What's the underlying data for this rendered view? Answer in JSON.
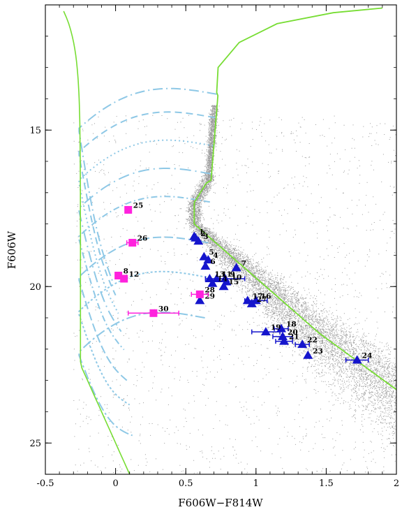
{
  "chart_data": {
    "type": "scatter",
    "title": "",
    "xlabel": "F606W−F814W",
    "ylabel": "F606W",
    "xlim": [
      -0.5,
      2
    ],
    "ylim": [
      26,
      11
    ],
    "x_ticks": [
      -0.5,
      0,
      0.5,
      1,
      1.5,
      2
    ],
    "x_tick_labels": [
      "-0.5",
      "0",
      "0.5",
      "1",
      "1.5",
      "2"
    ],
    "y_ticks": [
      15,
      20,
      25
    ],
    "y_tick_labels": [
      "15",
      "20",
      "25"
    ],
    "grid": false,
    "legend": "none",
    "colors": {
      "field_points": "#8a8a8a",
      "blue_triangles": "#1515cc",
      "magenta_squares": "#ff22dd",
      "wd_tracks": "#8ec8e6",
      "isochrone": "#77dd33"
    },
    "series": [
      {
        "marker": "triangle",
        "color": "#1515cc",
        "points": [
          {
            "id": "1",
            "x": 0.56,
            "y": 18.4,
            "xerr": 0
          },
          {
            "id": "2",
            "x": 0.57,
            "y": 18.45,
            "xerr": 0
          },
          {
            "id": "3",
            "x": 0.59,
            "y": 18.55,
            "xerr": 0
          },
          {
            "id": "4",
            "x": 0.66,
            "y": 19.15,
            "xerr": 0
          },
          {
            "id": "5",
            "x": 0.63,
            "y": 19.05,
            "xerr": 0
          },
          {
            "id": "6",
            "x": 0.64,
            "y": 19.35,
            "xerr": 0
          },
          {
            "id": "7",
            "x": 0.86,
            "y": 19.4,
            "xerr": 0
          },
          {
            "id": "9",
            "x": 0.78,
            "y": 19.75,
            "xerr": 0.14
          },
          {
            "id": "10",
            "x": 0.79,
            "y": 19.85,
            "xerr": 0
          },
          {
            "id": "11",
            "x": 0.72,
            "y": 19.75,
            "xerr": 0
          },
          {
            "id": "13",
            "x": 0.67,
            "y": 19.75,
            "xerr": 0
          },
          {
            "id": "14",
            "x": 0.69,
            "y": 19.9,
            "xerr": 0
          },
          {
            "id": "15",
            "x": 0.77,
            "y": 20.0,
            "xerr": 0
          },
          {
            "id": "16",
            "x": 1.0,
            "y": 20.45,
            "xerr": 0.08
          },
          {
            "id": "17",
            "x": 0.94,
            "y": 20.45,
            "xerr": 0
          },
          {
            "id": "18",
            "x": 1.18,
            "y": 21.35,
            "xerr": 0.05
          },
          {
            "id": "19",
            "x": 1.07,
            "y": 21.45,
            "xerr": 0.1
          },
          {
            "id": "20",
            "x": 1.19,
            "y": 21.6,
            "xerr": 0.07
          },
          {
            "id": "21",
            "x": 1.2,
            "y": 21.75,
            "xerr": 0.06
          },
          {
            "id": "22",
            "x": 1.33,
            "y": 21.85,
            "xerr": 0.05
          },
          {
            "id": "23",
            "x": 1.37,
            "y": 22.2,
            "xerr": 0
          },
          {
            "id": "24",
            "x": 1.72,
            "y": 22.35,
            "xerr": 0.08
          },
          {
            "id": "27",
            "x": 0.97,
            "y": 20.55,
            "xerr": 0
          },
          {
            "id": "29",
            "x": 0.6,
            "y": 20.45,
            "xerr": 0
          }
        ]
      },
      {
        "marker": "square",
        "color": "#ff22dd",
        "points": [
          {
            "id": "25",
            "x": 0.09,
            "y": 17.55,
            "xerr": 0
          },
          {
            "id": "26",
            "x": 0.12,
            "y": 18.6,
            "xerr": 0.04
          },
          {
            "id": "8",
            "x": 0.02,
            "y": 19.65,
            "xerr": 0
          },
          {
            "id": "12",
            "x": 0.06,
            "y": 19.75,
            "xerr": 0
          },
          {
            "id": "28",
            "x": 0.6,
            "y": 20.25,
            "xerr": 0.06
          },
          {
            "id": "30",
            "x": 0.27,
            "y": 20.85,
            "xerr": 0.18
          }
        ]
      }
    ]
  }
}
